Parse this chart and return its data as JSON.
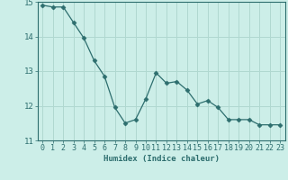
{
  "x": [
    0,
    1,
    2,
    3,
    4,
    5,
    6,
    7,
    8,
    9,
    10,
    11,
    12,
    13,
    14,
    15,
    16,
    17,
    18,
    19,
    20,
    21,
    22,
    23
  ],
  "y": [
    14.9,
    14.85,
    14.85,
    14.4,
    13.95,
    13.3,
    12.85,
    11.95,
    11.5,
    11.6,
    12.2,
    12.95,
    12.65,
    12.7,
    12.45,
    12.05,
    12.15,
    11.95,
    11.6,
    11.6,
    11.6,
    11.45,
    11.45,
    11.45
  ],
  "ylim": [
    11,
    15
  ],
  "yticks": [
    11,
    12,
    13,
    14,
    15
  ],
  "xticks": [
    0,
    1,
    2,
    3,
    4,
    5,
    6,
    7,
    8,
    9,
    10,
    11,
    12,
    13,
    14,
    15,
    16,
    17,
    18,
    19,
    20,
    21,
    22,
    23
  ],
  "xlabel": "Humidex (Indice chaleur)",
  "line_color": "#2d6e6e",
  "marker": "D",
  "marker_size": 2.5,
  "background_color": "#cceee8",
  "grid_color": "#b0d8d0",
  "tick_color": "#2d6e6e",
  "label_fontsize": 6.0,
  "xlabel_fontsize": 6.5
}
